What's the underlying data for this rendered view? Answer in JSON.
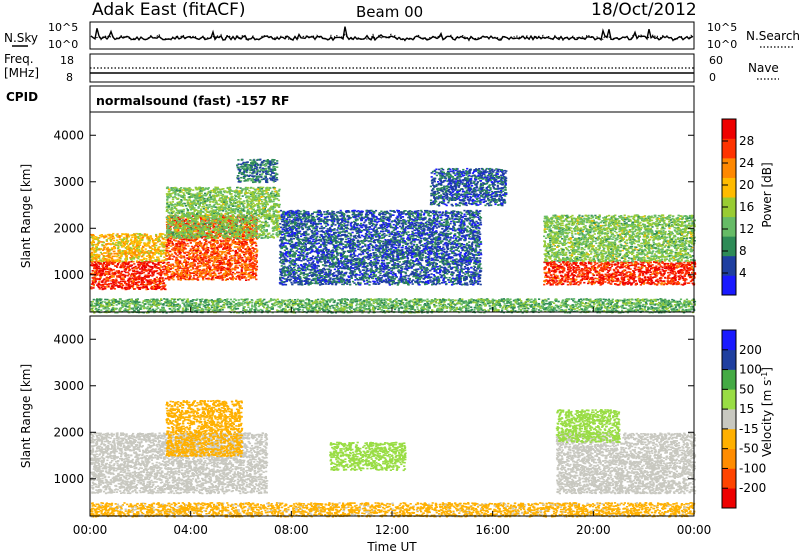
{
  "header": {
    "station": "Adak East (fitACF)",
    "beam": "Beam 00",
    "date": "18/Oct/2012"
  },
  "noise_panel": {
    "left_label": "N.Sky",
    "right_label": "N.Search",
    "left_ticks": [
      "10^5",
      "10^0"
    ],
    "right_ticks": [
      "10^5",
      "10^0"
    ]
  },
  "freq_panel": {
    "left_label_line1": "Freq.",
    "left_label_line2": "[MHz]",
    "right_label": "Nave",
    "left_ticks": [
      "18",
      "8"
    ],
    "right_ticks": [
      "60",
      "0"
    ]
  },
  "cpid": {
    "label": "CPID",
    "text": "normalsound (fast) -157 RF"
  },
  "colors": {
    "power_scale": [
      "#1a1aff",
      "#1f3fa0",
      "#2e8b57",
      "#66bb66",
      "#99cc33",
      "#ffbb00",
      "#ff8800",
      "#ff3300",
      "#ee0000"
    ],
    "velocity_scale": [
      "#ee0000",
      "#ff4400",
      "#ff8c00",
      "#ffb000",
      "#c8c8c0",
      "#99dd44",
      "#44aa44",
      "#1f3f9f",
      "#1a1aff"
    ]
  },
  "chart_data": [
    {
      "type": "heatmap",
      "title": "",
      "xlabel": "Time UT",
      "ylabel": "Slant Range [km]",
      "x_ticks": [
        "00:00",
        "04:00",
        "08:00",
        "12:00",
        "16:00",
        "20:00",
        "00:00"
      ],
      "y_ticks": [
        1000,
        2000,
        3000,
        4000
      ],
      "ylim": [
        200,
        4500
      ],
      "colorbar": {
        "label": "Power [dB]",
        "ticks": [
          4,
          8,
          12,
          16,
          20,
          24,
          28
        ],
        "range": [
          0,
          32
        ]
      },
      "regions": [
        {
          "x": [
            0.0,
            3.0
          ],
          "y": [
            700,
            1300
          ],
          "level": 28
        },
        {
          "x": [
            0.0,
            3.0
          ],
          "y": [
            1300,
            1900
          ],
          "level": 20
        },
        {
          "x": [
            3.0,
            6.6
          ],
          "y": [
            900,
            2300
          ],
          "level": 26
        },
        {
          "x": [
            3.0,
            7.5
          ],
          "y": [
            1800,
            2900
          ],
          "level": 14
        },
        {
          "x": [
            5.8,
            7.4
          ],
          "y": [
            3000,
            3500
          ],
          "level": 8
        },
        {
          "x": [
            7.5,
            15.5
          ],
          "y": [
            800,
            2400
          ],
          "level": 6
        },
        {
          "x": [
            13.5,
            16.5
          ],
          "y": [
            2500,
            3300
          ],
          "level": 6
        },
        {
          "x": [
            18.0,
            24.0
          ],
          "y": [
            800,
            1300
          ],
          "level": 28
        },
        {
          "x": [
            18.0,
            24.0
          ],
          "y": [
            1300,
            2300
          ],
          "level": 14
        },
        {
          "x": [
            0.0,
            24.0
          ],
          "y": [
            200,
            500
          ],
          "level": 12
        }
      ]
    },
    {
      "type": "heatmap",
      "title": "",
      "xlabel": "Time UT",
      "ylabel": "Slant Range [km]",
      "x_ticks": [
        "00:00",
        "04:00",
        "08:00",
        "12:00",
        "16:00",
        "20:00",
        "00:00"
      ],
      "y_ticks": [
        1000,
        2000,
        3000,
        4000
      ],
      "ylim": [
        200,
        4500
      ],
      "colorbar": {
        "label_text": "Velocity [m s",
        "label_sup": "-1",
        "label_end": "]",
        "ticks": [
          200,
          100,
          50,
          15,
          -15,
          -50,
          -100,
          -200
        ],
        "range": [
          -250,
          250
        ]
      },
      "regions": [
        {
          "x": [
            0.0,
            7.0
          ],
          "y": [
            700,
            2000
          ],
          "level": 0
        },
        {
          "x": [
            3.0,
            6.0
          ],
          "y": [
            1500,
            2700
          ],
          "level": -60
        },
        {
          "x": [
            9.5,
            12.5
          ],
          "y": [
            1200,
            1800
          ],
          "level": 60
        },
        {
          "x": [
            18.5,
            24.0
          ],
          "y": [
            700,
            2000
          ],
          "level": 0
        },
        {
          "x": [
            18.5,
            21.0
          ],
          "y": [
            1800,
            2500
          ],
          "level": 60
        },
        {
          "x": [
            0.0,
            24.0
          ],
          "y": [
            200,
            500
          ],
          "level": -40
        }
      ]
    }
  ]
}
